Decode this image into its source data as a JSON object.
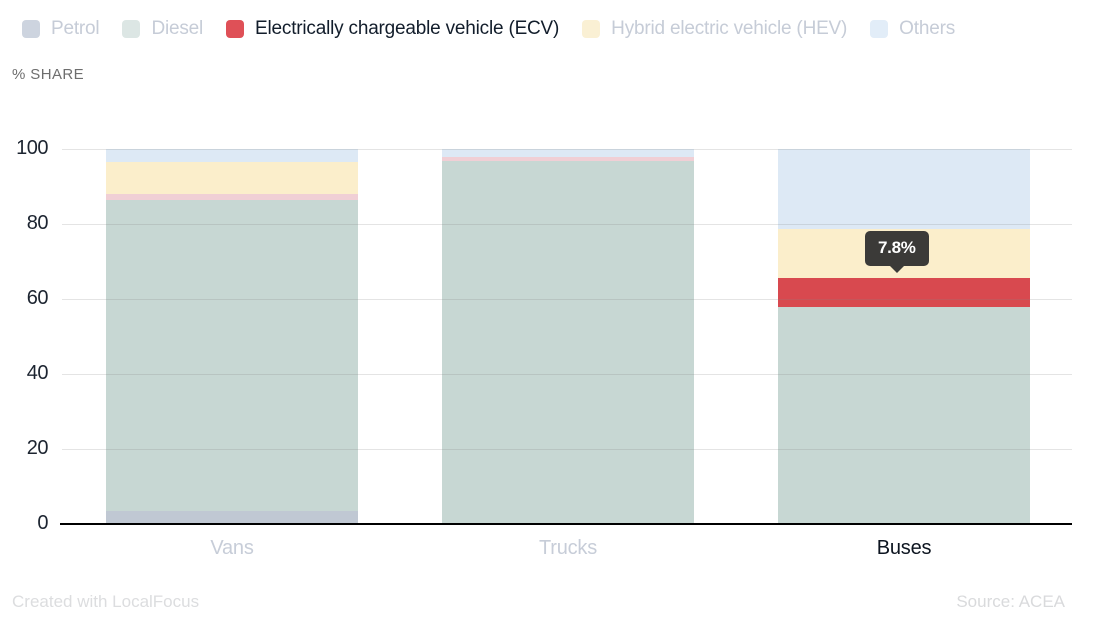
{
  "legend": {
    "items": [
      {
        "label": "Petrol",
        "swatch": "#cdd4df",
        "text_color": "#c6ccd7",
        "active": false
      },
      {
        "label": "Diesel",
        "swatch": "#dce6e4",
        "text_color": "#c6ccd7",
        "active": false
      },
      {
        "label": "Electrically chargeable vehicle (ECV)",
        "swatch": "#df5057",
        "text_color": "#121d2b",
        "active": true
      },
      {
        "label": "Hybrid electric vehicle (HEV)",
        "swatch": "#faf0d4",
        "text_color": "#c6ccd7",
        "active": false
      },
      {
        "label": "Others",
        "swatch": "#e2edf8",
        "text_color": "#c6ccd7",
        "active": false
      }
    ]
  },
  "y_axis_title": "% SHARE",
  "chart_data": {
    "type": "bar",
    "subtype": "stacked",
    "categories": [
      "Vans",
      "Trucks",
      "Buses"
    ],
    "series": [
      {
        "name": "Petrol",
        "values": [
          3.5,
          0,
          0
        ],
        "bar_color": "#c0c8d3"
      },
      {
        "name": "Diesel",
        "values": [
          83.0,
          96.8,
          57.9
        ],
        "bar_color": "#c7d7d3"
      },
      {
        "name": "Electrically chargeable vehicle (ECV)",
        "values": [
          1.5,
          1.1,
          7.8
        ],
        "bar_color": "#f0cfd5",
        "highlight_color": "#d8494f"
      },
      {
        "name": "Hybrid electric vehicle (HEV)",
        "values": [
          8.5,
          0,
          13.0
        ],
        "bar_color": "#fbeecb"
      },
      {
        "name": "Others",
        "values": [
          3.5,
          2.1,
          21.3
        ],
        "bar_color": "#dde9f5"
      }
    ],
    "ylabel": "% SHARE",
    "ylim": [
      0,
      100
    ],
    "yticks": [
      0,
      20,
      40,
      60,
      80,
      100
    ],
    "grid": true,
    "legend_position": "top",
    "highlight": {
      "category": "Buses",
      "series": "Electrically chargeable vehicle (ECV)",
      "tooltip": "7.8%"
    },
    "category_label_colors": {
      "default": "#c7cdd8",
      "highlight": "#0d1520"
    },
    "tick_label_color": "#1c2430"
  },
  "footer": {
    "left": "Created with LocalFocus",
    "right": "Source: ACEA"
  }
}
